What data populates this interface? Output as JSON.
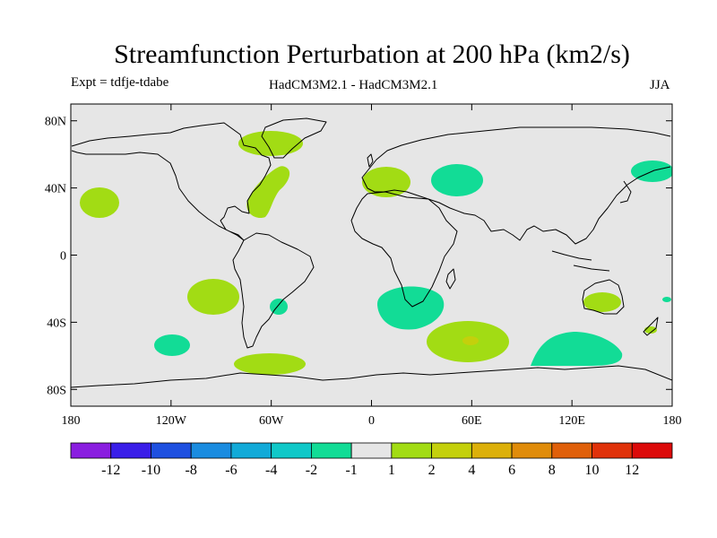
{
  "title": "Streamfunction Perturbation at 200 hPa (km2/s)",
  "subtitle_left": "Expt = tdfje-tdabe",
  "subtitle_center": "HadCM3M2.1 - HadCM3M2.1",
  "subtitle_right": "JJA",
  "y_ticks": [
    {
      "lat": 80,
      "label": "80N"
    },
    {
      "lat": 40,
      "label": "40N"
    },
    {
      "lat": 0,
      "label": "0"
    },
    {
      "lat": -40,
      "label": "40S"
    },
    {
      "lat": -80,
      "label": "80S"
    }
  ],
  "x_ticks": [
    {
      "lon": -180,
      "label": "180"
    },
    {
      "lon": -120,
      "label": "120W"
    },
    {
      "lon": -60,
      "label": "60W"
    },
    {
      "lon": 0,
      "label": "0"
    },
    {
      "lon": 60,
      "label": "60E"
    },
    {
      "lon": 120,
      "label": "120E"
    },
    {
      "lon": 180,
      "label": "180"
    }
  ],
  "colorbar": {
    "colors": [
      "#8a1ee0",
      "#3a1ee8",
      "#1e50e0",
      "#1a8ce0",
      "#12aad8",
      "#10c8c8",
      "#12dc96",
      "#e6e6e6",
      "#a2dc14",
      "#c4d00c",
      "#dcb00a",
      "#e08c0a",
      "#e0600a",
      "#e0320a",
      "#dc0a0a"
    ],
    "labels": [
      "-12",
      "-10",
      "-8",
      "-6",
      "-4",
      "-2",
      "-1",
      "1",
      "2",
      "4",
      "6",
      "8",
      "10",
      "12"
    ]
  },
  "colors": {
    "land_bg": "#e6e6e6",
    "positive_1": "#a2dc14",
    "positive_2": "#c4d00c",
    "negative_1": "#12dc96"
  },
  "anomalies": [
    {
      "sign": "positive",
      "level": "1 to 2",
      "lon": -162,
      "lat": 32
    },
    {
      "sign": "positive",
      "level": "1 to 2",
      "lon": -97,
      "lat": -28
    },
    {
      "sign": "negative",
      "level": "-2 to -1",
      "lon": -135,
      "lat": -53
    },
    {
      "sign": "positive",
      "level": "1 to 2",
      "lon": -72,
      "lat": -67
    },
    {
      "sign": "negative",
      "level": "-2 to -1",
      "lon": -55,
      "lat": -34
    },
    {
      "sign": "positive",
      "level": "1 to 2",
      "lon": -62,
      "lat": 67
    },
    {
      "sign": "positive",
      "level": "1 to 2",
      "lon": -68,
      "lat": 37
    },
    {
      "sign": "positive",
      "level": "1 to 2",
      "lon": 8,
      "lat": 46
    },
    {
      "sign": "negative",
      "level": "-2 to -1",
      "lon": 55,
      "lat": 46
    },
    {
      "sign": "negative",
      "level": "-2 to -1",
      "lon": 168,
      "lat": 50
    },
    {
      "sign": "negative",
      "level": "-2 to -1",
      "lon": 20,
      "lat": -30
    },
    {
      "sign": "positive",
      "level": "2 to 4",
      "lon": 63,
      "lat": -50
    },
    {
      "sign": "negative",
      "level": "-2 to -1",
      "lon": 120,
      "lat": -57
    },
    {
      "sign": "positive",
      "level": "1 to 2",
      "lon": 138,
      "lat": -26
    },
    {
      "sign": "negative",
      "level": "-2 to -1",
      "lon": 179,
      "lat": -25
    },
    {
      "sign": "positive",
      "level": "1 to 2",
      "lon": 172,
      "lat": -44
    }
  ]
}
